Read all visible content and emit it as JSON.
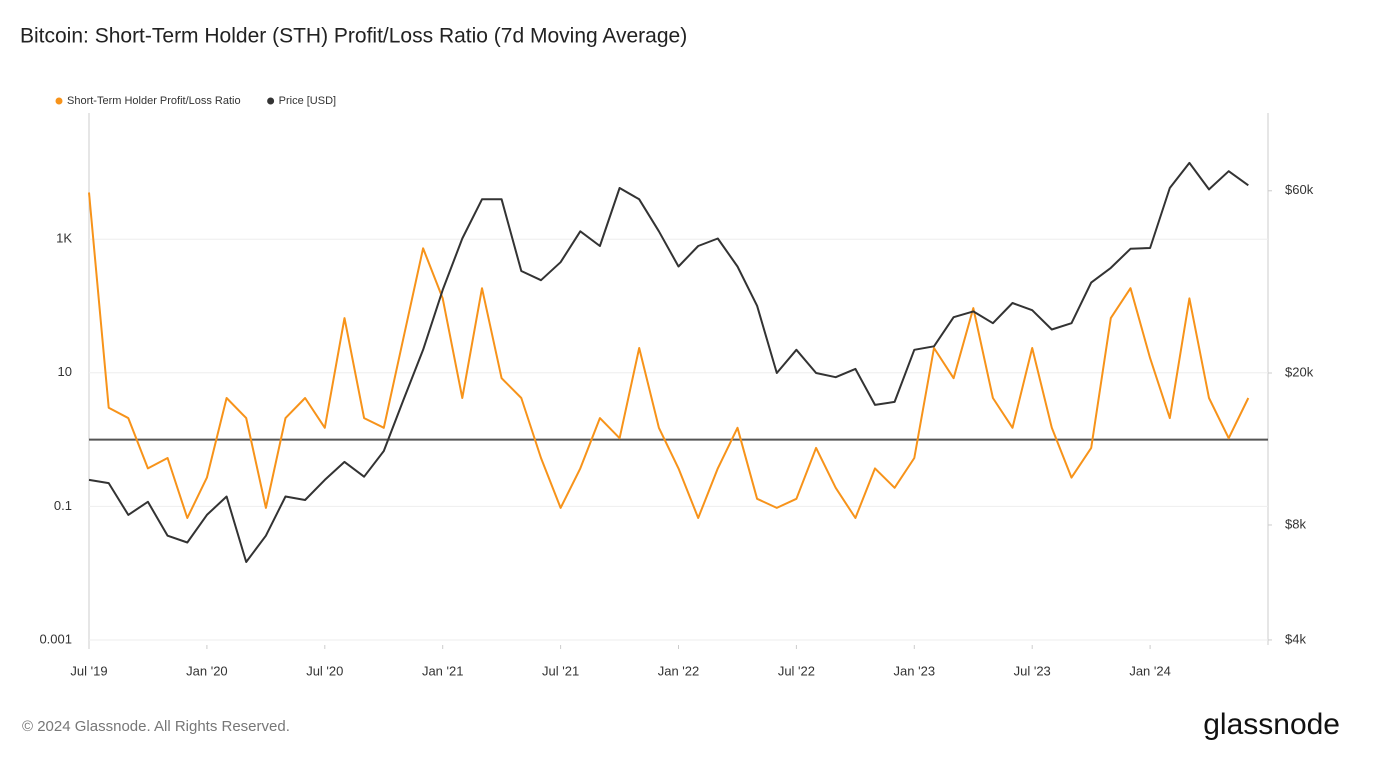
{
  "chart_data": {
    "type": "line",
    "title": "Bitcoin: Short-Term Holder (STH) Profit/Loss Ratio (7d Moving Average)",
    "x": [
      "2019-07",
      "2019-08",
      "2019-09",
      "2019-10",
      "2019-11",
      "2019-12",
      "2020-01",
      "2020-02",
      "2020-03",
      "2020-04",
      "2020-05",
      "2020-06",
      "2020-07",
      "2020-08",
      "2020-09",
      "2020-10",
      "2020-11",
      "2020-12",
      "2021-01",
      "2021-02",
      "2021-03",
      "2021-04",
      "2021-05",
      "2021-06",
      "2021-07",
      "2021-08",
      "2021-09",
      "2021-10",
      "2021-11",
      "2021-12",
      "2022-01",
      "2022-02",
      "2022-03",
      "2022-04",
      "2022-05",
      "2022-06",
      "2022-07",
      "2022-08",
      "2022-09",
      "2022-10",
      "2022-11",
      "2022-12",
      "2023-01",
      "2023-02",
      "2023-03",
      "2023-04",
      "2023-05",
      "2023-06",
      "2023-07",
      "2023-08",
      "2023-09",
      "2023-10",
      "2023-11",
      "2023-12",
      "2024-01",
      "2024-02",
      "2024-03",
      "2024-04",
      "2024-05",
      "2024-06"
    ],
    "series": [
      {
        "name": "Short-Term Holder Profit/Loss Ratio",
        "color": "#f7931a",
        "values": [
          5000,
          3,
          2.1,
          0.37,
          0.53,
          0.067,
          0.27,
          4.2,
          2.1,
          0.095,
          2.1,
          4.2,
          1.5,
          66,
          2.1,
          1.5,
          33,
          730,
          130,
          4.2,
          185,
          8.3,
          4.2,
          0.53,
          0.095,
          0.37,
          2.1,
          1.05,
          23.5,
          1.5,
          0.37,
          0.067,
          0.37,
          1.5,
          0.13,
          0.095,
          0.13,
          0.75,
          0.19,
          0.067,
          0.37,
          0.19,
          0.53,
          23.5,
          8.3,
          93,
          4.2,
          1.5,
          23.5,
          1.5,
          0.27,
          0.75,
          66,
          185,
          16.6,
          2.1,
          130,
          4.2,
          1.05,
          4.2
        ]
      },
      {
        "name": "Price [USD]",
        "color": "#333333",
        "axis": "y2",
        "values": [
          10500,
          10300,
          8500,
          9200,
          7500,
          7200,
          8500,
          9500,
          6400,
          7500,
          9500,
          9300,
          10500,
          11700,
          10700,
          12500,
          17000,
          23000,
          33000,
          45000,
          57000,
          57000,
          37000,
          35000,
          39000,
          47000,
          43000,
          61000,
          57000,
          47000,
          38000,
          43000,
          45000,
          38000,
          30000,
          20000,
          23000,
          20000,
          19500,
          20500,
          16500,
          16800,
          23000,
          23500,
          28000,
          29000,
          27000,
          30500,
          29200,
          26000,
          27000,
          34500,
          37700,
          42300,
          42500,
          61000,
          71000,
          60500,
          67500,
          62000
        ]
      }
    ],
    "xlim": [
      "2019-07",
      "2024-07"
    ],
    "xticks": [
      {
        "value": "2019-07",
        "label": "Jul '19"
      },
      {
        "value": "2020-01",
        "label": "Jan '20"
      },
      {
        "value": "2020-07",
        "label": "Jul '20"
      },
      {
        "value": "2021-01",
        "label": "Jan '21"
      },
      {
        "value": "2021-07",
        "label": "Jul '21"
      },
      {
        "value": "2022-01",
        "label": "Jan '22"
      },
      {
        "value": "2022-07",
        "label": "Jul '22"
      },
      {
        "value": "2023-01",
        "label": "Jan '23"
      },
      {
        "value": "2023-07",
        "label": "Jul '23"
      },
      {
        "value": "2024-01",
        "label": "Jan '24"
      }
    ],
    "ylim": [
      0.00084,
      77600
    ],
    "ylog": true,
    "yticks": [
      0.001,
      0.1,
      10,
      {
        "value": 1000,
        "label": "1K"
      }
    ],
    "y2lim": [
      3880,
      95900
    ],
    "y2log": true,
    "y2ticks": [
      {
        "value": 4000,
        "label": "$4k"
      },
      {
        "value": 8000,
        "label": "$8k"
      },
      {
        "value": 20000,
        "label": "$20k"
      },
      {
        "value": 60000,
        "label": "$60k"
      }
    ],
    "reference_line": 1,
    "grid": true,
    "legend": "top-left"
  },
  "footer": {
    "copyright": "© 2024 Glassnode. All Rights Reserved.",
    "brand": "glassnode"
  }
}
